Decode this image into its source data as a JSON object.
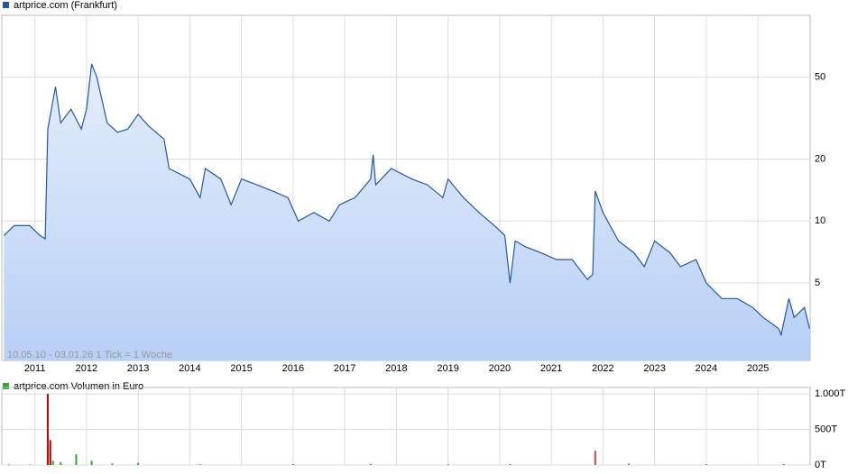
{
  "chart_data": [
    {
      "type": "line",
      "title": "artprice.com (Frankfurt)",
      "subtitle": "10.05.10 - 03.01.26   1 Tick = 1 Woche",
      "log_scale": true,
      "grid": true,
      "color": "#2457a8",
      "xlim": [
        2010.36,
        2026.01
      ],
      "xticks": [
        2011,
        2012,
        2013,
        2014,
        2015,
        2016,
        2017,
        2018,
        2019,
        2020,
        2021,
        2022,
        2023,
        2024,
        2025
      ],
      "ylim": [
        2.1,
        100
      ],
      "yticks": [
        5,
        10,
        20,
        50
      ],
      "x": [
        2010.4,
        2010.6,
        2010.9,
        2011.1,
        2011.2,
        2011.25,
        2011.4,
        2011.5,
        2011.7,
        2011.9,
        2012.0,
        2012.1,
        2012.2,
        2012.4,
        2012.6,
        2012.8,
        2013.0,
        2013.2,
        2013.5,
        2013.6,
        2014.0,
        2014.2,
        2014.3,
        2014.6,
        2014.8,
        2015.0,
        2015.3,
        2015.6,
        2015.9,
        2016.1,
        2016.4,
        2016.7,
        2016.9,
        2017.2,
        2017.5,
        2017.55,
        2017.6,
        2017.9,
        2018.3,
        2018.6,
        2018.9,
        2019.0,
        2019.3,
        2019.6,
        2019.9,
        2020.1,
        2020.2,
        2020.3,
        2020.5,
        2020.8,
        2021.1,
        2021.4,
        2021.7,
        2021.8,
        2021.85,
        2022.0,
        2022.3,
        2022.6,
        2022.8,
        2023.0,
        2023.3,
        2023.5,
        2023.8,
        2024.0,
        2024.3,
        2024.6,
        2024.9,
        2025.1,
        2025.4,
        2025.45,
        2025.6,
        2025.7,
        2025.9,
        2026.0
      ],
      "values": [
        8.5,
        9.5,
        9.5,
        8.5,
        8.2,
        28,
        45,
        30,
        35,
        28,
        35,
        58,
        50,
        30,
        27,
        28,
        33,
        29,
        25,
        18,
        16,
        13,
        18,
        16,
        12,
        16,
        15,
        14,
        13,
        10,
        11,
        10,
        12,
        13,
        16,
        21,
        15,
        18,
        16,
        15,
        13,
        16,
        13,
        11,
        9.5,
        8.5,
        5,
        8,
        7.5,
        7,
        6.5,
        6.5,
        5.2,
        5.5,
        14,
        11,
        8,
        7,
        6,
        8,
        7,
        6,
        6.5,
        5,
        4.2,
        4.2,
        3.8,
        3.4,
        3.0,
        2.8,
        4.2,
        3.4,
        3.8,
        3.0
      ]
    },
    {
      "type": "bar",
      "title": "artprice.com Volumen in Euro",
      "grid": true,
      "xlim": [
        2010.36,
        2026.01
      ],
      "ylim": [
        0,
        1090
      ],
      "yticks": [
        {
          "value": 0,
          "label": "0T"
        },
        {
          "value": 500,
          "label": "500T"
        },
        {
          "value": 1000,
          "label": "1.000T"
        }
      ],
      "x": [
        2010.5,
        2010.9,
        2011.25,
        2011.3,
        2011.35,
        2011.5,
        2011.8,
        2012.1,
        2012.5,
        2013.0,
        2014.2,
        2016.0,
        2017.5,
        2019.0,
        2020.2,
        2021.85,
        2022.5,
        2024.0,
        2025.5
      ],
      "values": [
        8,
        6,
        1000,
        350,
        60,
        40,
        150,
        60,
        20,
        30,
        10,
        12,
        15,
        10,
        14,
        200,
        20,
        10,
        12
      ],
      "colors": [
        "#3a3",
        "#3a3",
        "#c00",
        "#c00",
        "#3a3",
        "#3a3",
        "#3a3",
        "#3a3",
        "#3a3",
        "#3a3",
        "#3a3",
        "#3a3",
        "#3a3",
        "#3a3",
        "#3a3",
        "#c44",
        "#3a3",
        "#3a3",
        "#3a3"
      ]
    }
  ]
}
